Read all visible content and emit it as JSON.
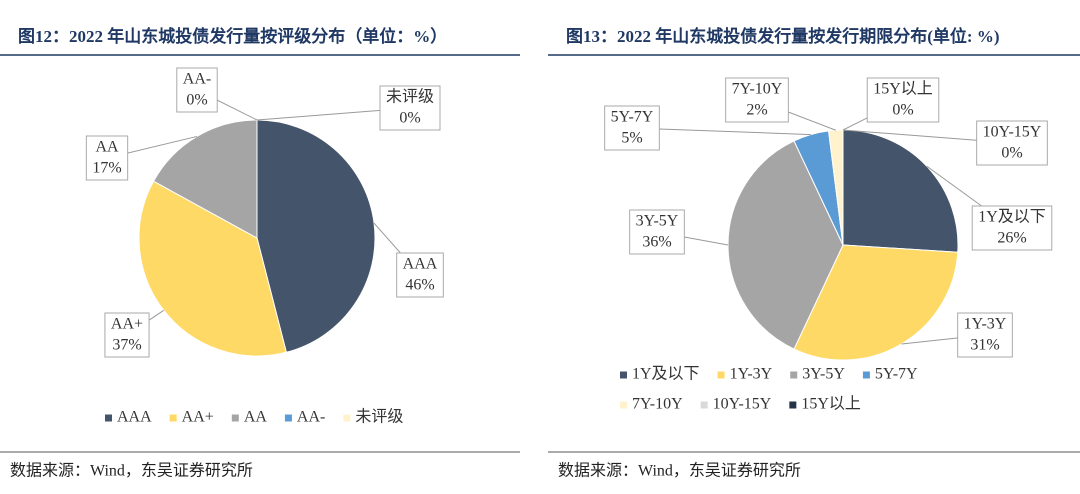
{
  "chart_data": [
    {
      "type": "pie",
      "title": "图12：2022 年山东城投债发行量按评级分布（单位：%）",
      "source": "数据来源：Wind，东吴证券研究所",
      "categories": [
        "AAA",
        "AA+",
        "AA",
        "AA-",
        "未评级"
      ],
      "values": [
        46,
        37,
        17,
        0,
        0
      ],
      "value_labels": [
        "46%",
        "37%",
        "17%",
        "0%",
        "0%"
      ],
      "colors": [
        "#44546a",
        "#ffd966",
        "#a5a5a5",
        "#5b9bd5",
        "#fff2cc"
      ]
    },
    {
      "type": "pie",
      "title": "图13：2022 年山东城投债发行量按发行期限分布(单位: %)",
      "source": "数据来源：Wind，东吴证券研究所",
      "categories": [
        "1Y及以下",
        "1Y-3Y",
        "3Y-5Y",
        "5Y-7Y",
        "7Y-10Y",
        "10Y-15Y",
        "15Y以上"
      ],
      "values": [
        26,
        31,
        36,
        5,
        2,
        0,
        0
      ],
      "value_labels": [
        "26%",
        "31%",
        "36%",
        "5%",
        "2%",
        "0%",
        "0%"
      ],
      "colors": [
        "#44546a",
        "#ffd966",
        "#a5a5a5",
        "#5b9bd5",
        "#fff2cc",
        "#d9d9d9",
        "#263248"
      ]
    }
  ]
}
